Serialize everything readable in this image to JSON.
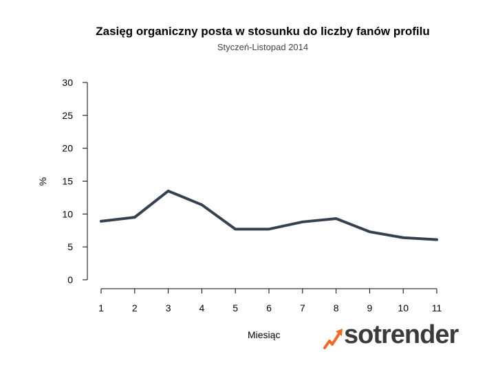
{
  "chart_data": {
    "type": "line",
    "title": "Zasięg organiczny posta w stosunku do liczby fanów profilu",
    "subtitle": "Styczeń-Listopad 2014",
    "xlabel": "Miesiąc",
    "ylabel": "%",
    "x": [
      1,
      2,
      3,
      4,
      5,
      6,
      7,
      8,
      9,
      10,
      11
    ],
    "values": [
      8.9,
      9.5,
      13.5,
      11.4,
      7.7,
      7.7,
      8.8,
      9.3,
      7.3,
      6.4,
      6.1
    ],
    "ylim": [
      0,
      30
    ],
    "yticks": [
      0,
      5,
      10,
      15,
      20,
      25,
      30
    ],
    "grid": false,
    "line_color": "#36414f"
  },
  "brand": {
    "logo_text": "sotrender",
    "accent_color": "#f26b21",
    "text_color": "#3a3a3a"
  }
}
